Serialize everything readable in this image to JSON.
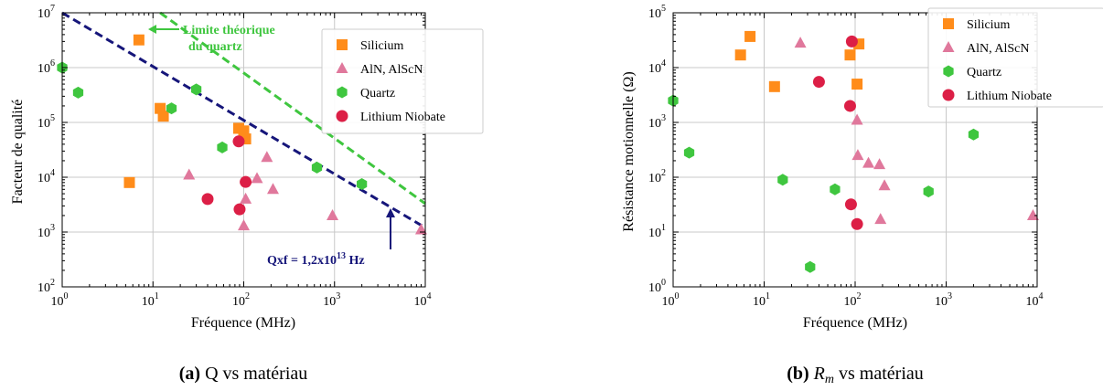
{
  "colors": {
    "silicium": "#ff8c1a",
    "aln": "#e0789c",
    "quartz": "#3fc63f",
    "lithium": "#dc1f46",
    "limit_line": "#3fc63f",
    "qxf_line": "#16167a",
    "grid": "#c8c8c8"
  },
  "chart_data": [
    {
      "type": "scatter",
      "xscale": "log",
      "yscale": "log",
      "xlim": [
        1,
        10000
      ],
      "ylim": [
        100,
        10000000
      ],
      "xlabel": "Fréquence (MHz)",
      "ylabel": "Facteur de qualité",
      "grid": true,
      "legend_position": "top-right",
      "x_ticks": [
        {
          "base": "10",
          "exp": "0"
        },
        {
          "base": "10",
          "exp": "1"
        },
        {
          "base": "10",
          "exp": "2"
        },
        {
          "base": "10",
          "exp": "3"
        },
        {
          "base": "10",
          "exp": "4"
        }
      ],
      "y_ticks": [
        {
          "base": "10",
          "exp": "2"
        },
        {
          "base": "10",
          "exp": "3"
        },
        {
          "base": "10",
          "exp": "4"
        },
        {
          "base": "10",
          "exp": "5"
        },
        {
          "base": "10",
          "exp": "6"
        },
        {
          "base": "10",
          "exp": "7"
        }
      ],
      "series": [
        {
          "name": "Silicium",
          "marker": "square",
          "points": [
            [
              7,
              3200000
            ],
            [
              12,
              180000
            ],
            [
              13,
              130000
            ],
            [
              5.5,
              8000
            ],
            [
              88,
              78000
            ],
            [
              100,
              70000
            ],
            [
              105,
              50000
            ]
          ]
        },
        {
          "name": "AlN, AlScN",
          "marker": "triangle",
          "points": [
            [
              25,
              11000
            ],
            [
              100,
              1300
            ],
            [
              105,
              4000
            ],
            [
              140,
              9500
            ],
            [
              180,
              23000
            ],
            [
              210,
              6000
            ],
            [
              950,
              2000
            ],
            [
              9000,
              1100
            ]
          ]
        },
        {
          "name": "Quartz",
          "marker": "hexagon",
          "points": [
            [
              1,
              1000000
            ],
            [
              1.5,
              350000
            ],
            [
              16,
              180000
            ],
            [
              30,
              400000
            ],
            [
              58,
              35000
            ],
            [
              640,
              15000
            ],
            [
              2000,
              7500
            ]
          ]
        },
        {
          "name": "Lithium Niobate",
          "marker": "circle",
          "points": [
            [
              40,
              4000
            ],
            [
              88,
              45000
            ],
            [
              90,
              2600
            ],
            [
              105,
              8200
            ]
          ]
        }
      ],
      "lines": [
        {
          "label_line1": "Limite théorique",
          "label_line2": "du quartz",
          "style": "dashed",
          "points": [
            [
              12,
              10000000
            ],
            [
              10000,
              3300
            ]
          ]
        },
        {
          "label_main": "Qxf = 1,2x10",
          "label_exp": "13",
          "label_unit": " Hz",
          "style": "dashed",
          "points": [
            [
              1,
              10000000
            ],
            [
              10000,
              1200
            ]
          ]
        }
      ]
    },
    {
      "type": "scatter",
      "xscale": "log",
      "yscale": "log",
      "xlim": [
        1,
        10000
      ],
      "ylim": [
        1,
        100000
      ],
      "xlabel": "Fréquence (MHz)",
      "ylabel": "Résistance motionnelle (Ω)",
      "grid": true,
      "legend_position": "top-right",
      "x_ticks": [
        {
          "base": "10",
          "exp": "0"
        },
        {
          "base": "10",
          "exp": "1"
        },
        {
          "base": "10",
          "exp": "2"
        },
        {
          "base": "10",
          "exp": "3"
        },
        {
          "base": "10",
          "exp": "4"
        }
      ],
      "y_ticks": [
        {
          "base": "10",
          "exp": "0"
        },
        {
          "base": "10",
          "exp": "1"
        },
        {
          "base": "10",
          "exp": "2"
        },
        {
          "base": "10",
          "exp": "3"
        },
        {
          "base": "10",
          "exp": "4"
        },
        {
          "base": "10",
          "exp": "5"
        }
      ],
      "series": [
        {
          "name": "Silicium",
          "marker": "square",
          "points": [
            [
              5.5,
              17000
            ],
            [
              7,
              37000
            ],
            [
              13,
              4500
            ],
            [
              88,
              17000
            ],
            [
              105,
              5000
            ],
            [
              110,
              27000
            ]
          ]
        },
        {
          "name": "AlN, AlScN",
          "marker": "triangle",
          "points": [
            [
              25,
              28000
            ],
            [
              105,
              1100
            ],
            [
              107,
              250
            ],
            [
              140,
              180
            ],
            [
              185,
              170
            ],
            [
              190,
              17
            ],
            [
              210,
              70
            ],
            [
              9000,
              20
            ]
          ]
        },
        {
          "name": "Quartz",
          "marker": "hexagon",
          "points": [
            [
              1,
              2500
            ],
            [
              1.5,
              280
            ],
            [
              16,
              90
            ],
            [
              32,
              2.3
            ],
            [
              60,
              60
            ],
            [
              640,
              55
            ],
            [
              2000,
              600
            ]
          ]
        },
        {
          "name": "Lithium Niobate",
          "marker": "circle",
          "points": [
            [
              40,
              5500
            ],
            [
              88,
              2000
            ],
            [
              90,
              32
            ],
            [
              92,
              30000
            ],
            [
              105,
              14
            ]
          ]
        }
      ]
    }
  ],
  "captions": [
    {
      "label": "(a)",
      "text": " Q vs matériau"
    },
    {
      "label": "(b)",
      "math": "R",
      "sub": "m",
      "text": " vs matériau"
    }
  ]
}
